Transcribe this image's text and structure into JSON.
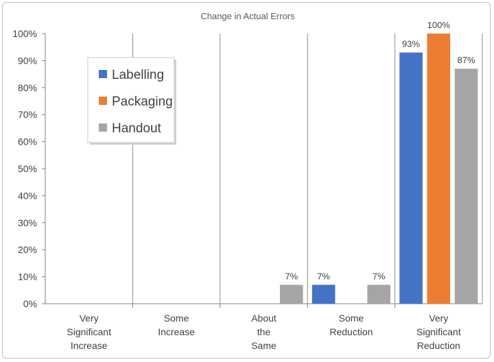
{
  "chart_data": {
    "type": "bar",
    "title": "Change in Actual Errors",
    "xlabel": "",
    "ylabel": "",
    "ylim": [
      0,
      100
    ],
    "ytick_step": 10,
    "ytick_suffix": "%",
    "grid": {
      "horizontal": false,
      "vertical_separators": true
    },
    "legend_position": "upper-left inside plot",
    "categories": [
      [
        "Very",
        "Significant",
        "Increase"
      ],
      [
        "Some",
        "Increase"
      ],
      [
        "About",
        "the",
        "Same"
      ],
      [
        "Some",
        "Reduction"
      ],
      [
        "Very",
        "Significant",
        "Reduction"
      ]
    ],
    "series": [
      {
        "name": "Labelling",
        "color": "#4472C4",
        "values": [
          0,
          0,
          0,
          7,
          93
        ]
      },
      {
        "name": "Packaging",
        "color": "#ED7D31",
        "values": [
          0,
          0,
          0,
          0,
          100
        ]
      },
      {
        "name": "Handout",
        "color": "#A5A5A5",
        "values": [
          0,
          0,
          7,
          7,
          87
        ]
      }
    ]
  }
}
